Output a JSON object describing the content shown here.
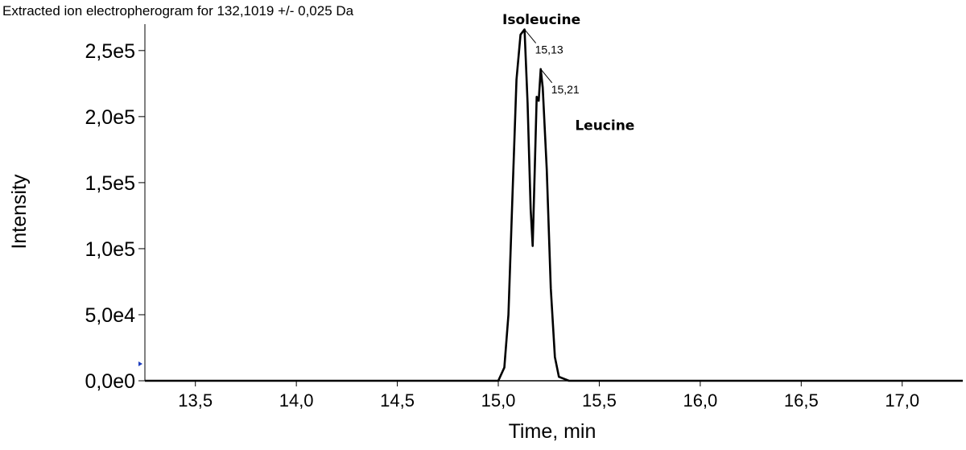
{
  "chart_data": {
    "type": "line",
    "title": "Extracted ion electropherogram for 132,1019 +/- 0,025 Da",
    "xlabel": "Time, min",
    "ylabel": "Intensity",
    "xlim": [
      13.25,
      17.3
    ],
    "ylim": [
      0,
      270000
    ],
    "x_ticks": [
      {
        "value": 13.5,
        "label": "13,5"
      },
      {
        "value": 14.0,
        "label": "14,0"
      },
      {
        "value": 14.5,
        "label": "14,5"
      },
      {
        "value": 15.0,
        "label": "15,0"
      },
      {
        "value": 15.5,
        "label": "15,5"
      },
      {
        "value": 16.0,
        "label": "16,0"
      },
      {
        "value": 16.5,
        "label": "16,5"
      },
      {
        "value": 17.0,
        "label": "17,0"
      }
    ],
    "y_ticks": [
      {
        "value": 0,
        "label": "0,0e0"
      },
      {
        "value": 50000,
        "label": "5,0e4"
      },
      {
        "value": 100000,
        "label": "1,0e5"
      },
      {
        "value": 150000,
        "label": "1,5e5"
      },
      {
        "value": 200000,
        "label": "2,0e5"
      },
      {
        "value": 250000,
        "label": "2,5e5"
      }
    ],
    "grid": false,
    "series": [
      {
        "color": "#000000",
        "x": [
          13.25,
          14.5,
          15.0,
          15.03,
          15.05,
          15.07,
          15.09,
          15.11,
          15.13,
          15.145,
          15.16,
          15.17,
          15.18,
          15.19,
          15.2,
          15.21,
          15.22,
          15.24,
          15.26,
          15.28,
          15.3,
          15.35,
          16.5,
          17.3
        ],
        "y": [
          0,
          0,
          0,
          10000,
          50000,
          140000,
          228000,
          262000,
          266000,
          210000,
          130000,
          102000,
          158000,
          215000,
          212000,
          236000,
          222000,
          160000,
          70000,
          18000,
          3000,
          0,
          0,
          0
        ]
      }
    ],
    "annotations": [
      {
        "text": "Isoleucine",
        "x": 15.02,
        "y": 270000,
        "kind": "compound"
      },
      {
        "text": "Leucine",
        "x": 15.38,
        "y": 190000,
        "kind": "compound"
      },
      {
        "text": "15,13",
        "x": 15.13,
        "y": 266000,
        "kind": "retention-time"
      },
      {
        "text": "15,21",
        "x": 15.21,
        "y": 236000,
        "kind": "retention-time"
      }
    ]
  }
}
